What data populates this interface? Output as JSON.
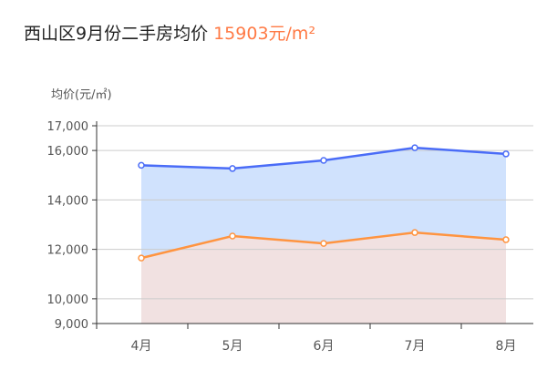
{
  "header": {
    "title": "西山区9月份二手房均价",
    "price": "15903元/m²"
  },
  "chart_data": {
    "type": "area",
    "ylabel": "均价(元/㎡)",
    "categories": [
      "4月",
      "5月",
      "6月",
      "7月",
      "8月"
    ],
    "ylim": [
      9000,
      17000
    ],
    "yticks": [
      9000,
      10000,
      12000,
      14000,
      16000,
      17000
    ],
    "ytick_labels": [
      "9,000",
      "10,000",
      "12,000",
      "14,000",
      "16,000",
      "17,000"
    ],
    "grid": true,
    "series": [
      {
        "values": [
          15400,
          15270,
          15600,
          16110,
          15860
        ],
        "color": "#4a6cf7",
        "fill": "#d0e2fd"
      },
      {
        "values": [
          11650,
          12540,
          12240,
          12680,
          12390
        ],
        "color": "#ff9440",
        "fill": "#f1e1e1"
      }
    ]
  }
}
